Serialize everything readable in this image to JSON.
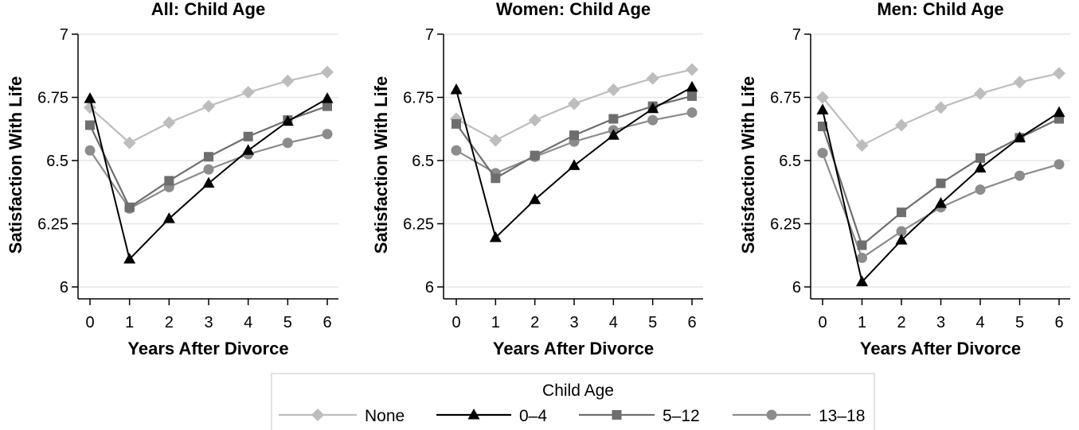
{
  "chart_data": {
    "type": "line",
    "x": [
      0,
      1,
      2,
      3,
      4,
      5,
      6
    ],
    "xlabel": "Years After Divorce",
    "ylabel": "Satisfaction With Life",
    "ylim": [
      6,
      7
    ],
    "yticks": [
      6,
      6.25,
      6.5,
      6.75,
      7
    ],
    "ytick_labels": [
      "6",
      "6.25",
      "6.5",
      "6.75",
      "7"
    ],
    "grid": "horizontal",
    "legend": {
      "title": "Child Age",
      "position": "bottom",
      "entries": [
        "None",
        "0–4",
        "5–12",
        "13–18"
      ]
    },
    "series_styles": [
      {
        "name": "None",
        "color": "#bdbdbd",
        "marker": "diamond"
      },
      {
        "name": "0–4",
        "color": "#000000",
        "marker": "triangle"
      },
      {
        "name": "5–12",
        "color": "#6e6e6e",
        "marker": "square"
      },
      {
        "name": "13–18",
        "color": "#8c8c8c",
        "marker": "circle"
      }
    ],
    "panels": [
      {
        "title": "All: Child Age",
        "series": [
          {
            "name": "None",
            "values": [
              6.71,
              6.57,
              6.65,
              6.715,
              6.77,
              6.815,
              6.85
            ]
          },
          {
            "name": "0–4",
            "values": [
              6.745,
              6.11,
              6.27,
              6.41,
              6.54,
              6.655,
              6.745
            ]
          },
          {
            "name": "5–12",
            "values": [
              6.64,
              6.315,
              6.42,
              6.515,
              6.595,
              6.66,
              6.715
            ]
          },
          {
            "name": "13–18",
            "values": [
              6.54,
              6.31,
              6.395,
              6.465,
              6.525,
              6.57,
              6.605
            ]
          }
        ]
      },
      {
        "title": "Women: Child Age",
        "series": [
          {
            "name": "None",
            "values": [
              6.665,
              6.58,
              6.66,
              6.725,
              6.78,
              6.825,
              6.86
            ]
          },
          {
            "name": "0–4",
            "values": [
              6.78,
              6.195,
              6.345,
              6.48,
              6.6,
              6.705,
              6.79
            ]
          },
          {
            "name": "5–12",
            "values": [
              6.645,
              6.43,
              6.52,
              6.6,
              6.665,
              6.715,
              6.755
            ]
          },
          {
            "name": "13–18",
            "values": [
              6.54,
              6.45,
              6.515,
              6.575,
              6.62,
              6.66,
              6.69
            ]
          }
        ]
      },
      {
        "title": "Men: Child Age",
        "series": [
          {
            "name": "None",
            "values": [
              6.75,
              6.56,
              6.64,
              6.71,
              6.765,
              6.81,
              6.845
            ]
          },
          {
            "name": "0–4",
            "values": [
              6.7,
              6.02,
              6.185,
              6.33,
              6.47,
              6.59,
              6.69
            ]
          },
          {
            "name": "5–12",
            "values": [
              6.635,
              6.165,
              6.295,
              6.41,
              6.51,
              6.59,
              6.665
            ]
          },
          {
            "name": "13–18",
            "values": [
              6.53,
              6.115,
              6.22,
              6.315,
              6.385,
              6.44,
              6.485
            ]
          }
        ]
      }
    ]
  }
}
